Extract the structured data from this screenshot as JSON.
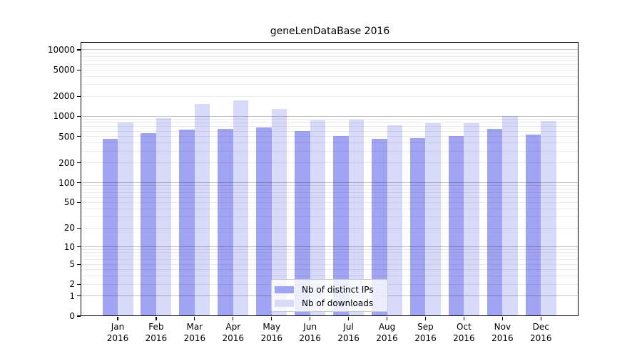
{
  "title": "geneLenDataBase 2016",
  "colors": {
    "distinct_ips_bar": "#a1a4f2",
    "downloads_bar": "#d8daf9",
    "major_grid": "rgba(0,0,0,0.24)",
    "minor_grid": "rgba(0,0,0,0.08)",
    "axis": "#000000",
    "legend_border": "#cccccc"
  },
  "legend": {
    "items": [
      {
        "label": "Nb of distinct IPs"
      },
      {
        "label": "Nb of downloads"
      }
    ]
  },
  "chart_data": {
    "type": "bar",
    "title": "geneLenDataBase 2016",
    "xlabel": "",
    "ylabel": "",
    "scale": "log10(value+1)",
    "grid": true,
    "legend_position": "lower center",
    "categories": [
      "Jan 2016",
      "Feb 2016",
      "Mar 2016",
      "Apr 2016",
      "May 2016",
      "Jun 2016",
      "Jul 2016",
      "Aug 2016",
      "Sep 2016",
      "Oct 2016",
      "Nov 2016",
      "Dec 2016"
    ],
    "series": [
      {
        "name": "Nb of distinct IPs",
        "color": "#a1a4f2",
        "values": [
          460,
          566,
          639,
          642,
          683,
          598,
          503,
          463,
          474,
          512,
          645,
          537
        ]
      },
      {
        "name": "Nb of downloads",
        "color": "#d8daf9",
        "values": [
          805,
          950,
          1535,
          1740,
          1280,
          876,
          905,
          742,
          786,
          799,
          1006,
          846
        ]
      }
    ],
    "y_ticks": [
      0,
      1,
      2,
      5,
      10,
      20,
      50,
      100,
      200,
      500,
      1000,
      2000,
      5000,
      10000
    ],
    "y_major_gridlines": [
      1,
      10,
      100,
      1000,
      10000
    ],
    "ylim": [
      0,
      13000
    ]
  }
}
